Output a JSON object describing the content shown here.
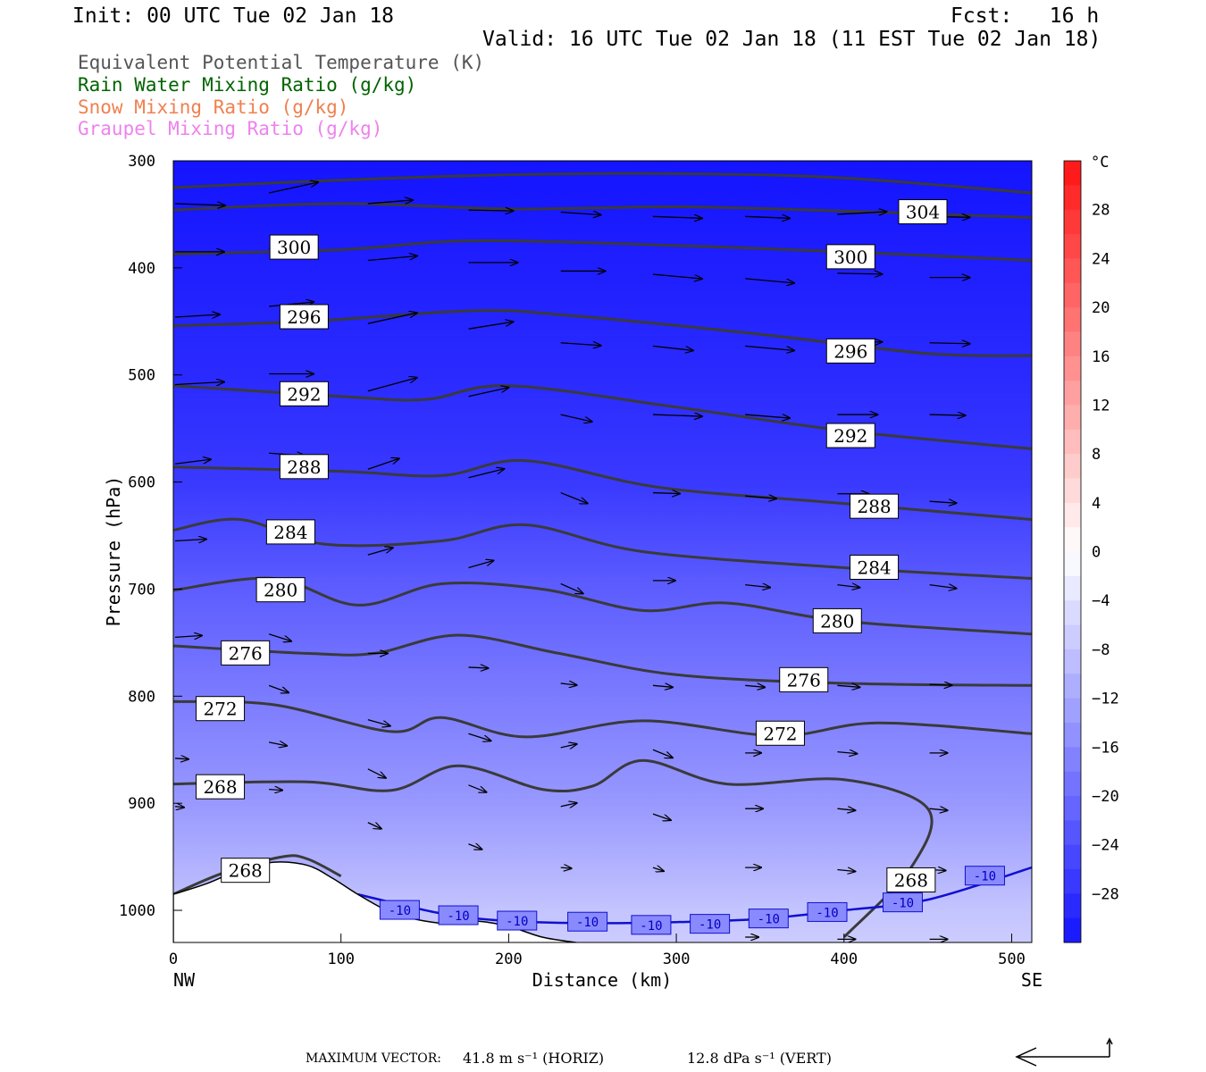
{
  "header": {
    "init": "Init: 00 UTC Tue 02 Jan 18",
    "fcst": "Fcst:   16 h",
    "valid": "Valid: 16 UTC Tue 02 Jan 18 (11 EST Tue 02 Jan 18)"
  },
  "legend": [
    {
      "text": "Equivalent Potential Temperature (K)",
      "color": "#555555"
    },
    {
      "text": "Rain Water Mixing Ratio (g/kg)",
      "color": "#006400"
    },
    {
      "text": "Snow Mixing Ratio (g/kg)",
      "color": "#f08050"
    },
    {
      "text": "Graupel Mixing Ratio (g/kg)",
      "color": "#ee82ee"
    }
  ],
  "footer": {
    "max_vector_label": "MAXIMUM VECTOR:",
    "horiz": "41.8 m s⁻¹ (HORIZ)",
    "vert": "12.8 dPa s⁻¹ (VERT)"
  },
  "chart_data": {
    "type": "cross-section",
    "xlabel": "Distance (km)",
    "ylabel": "Pressure (hPa)",
    "x_range": [
      0,
      512
    ],
    "y_range": [
      300,
      1030
    ],
    "x_ticks": [
      0,
      100,
      200,
      300,
      400,
      500
    ],
    "y_ticks": [
      300,
      400,
      500,
      600,
      700,
      800,
      900,
      1000
    ],
    "x_end_labels": {
      "left": "NW",
      "right": "SE"
    },
    "colorbar": {
      "unit": "°C",
      "labels": [
        28,
        24,
        20,
        16,
        12,
        8,
        4,
        0,
        -4,
        -8,
        -12,
        -16,
        -20,
        -24,
        -28
      ],
      "range": [
        -32,
        32
      ]
    },
    "temperature_background": [
      {
        "p": 300,
        "t": -32
      },
      {
        "p": 500,
        "t": -29
      },
      {
        "p": 600,
        "t": -27
      },
      {
        "p": 700,
        "t": -22
      },
      {
        "p": 800,
        "t": -18
      },
      {
        "p": 900,
        "t": -14
      },
      {
        "p": 1000,
        "t": -8
      },
      {
        "p": 1030,
        "t": -7
      }
    ],
    "theta_e_contours": [
      {
        "value": 304,
        "points": [
          [
            0,
            325
          ],
          [
            100,
            318
          ],
          [
            200,
            313
          ],
          [
            300,
            312
          ],
          [
            400,
            316
          ],
          [
            512,
            330
          ]
        ]
      },
      {
        "value": 304,
        "points": [
          [
            0,
            346
          ],
          [
            100,
            340
          ],
          [
            200,
            345
          ],
          [
            300,
            343
          ],
          [
            400,
            347
          ],
          [
            512,
            353
          ]
        ]
      },
      {
        "value": 300,
        "points": [
          [
            0,
            387
          ],
          [
            100,
            383
          ],
          [
            170,
            375
          ],
          [
            260,
            377
          ],
          [
            400,
            385
          ],
          [
            512,
            393
          ]
        ]
      },
      {
        "value": 296,
        "points": [
          [
            0,
            454
          ],
          [
            80,
            450
          ],
          [
            180,
            440
          ],
          [
            240,
            445
          ],
          [
            350,
            462
          ],
          [
            450,
            480
          ],
          [
            512,
            482
          ]
        ]
      },
      {
        "value": 292,
        "points": [
          [
            0,
            510
          ],
          [
            100,
            520
          ],
          [
            150,
            523
          ],
          [
            200,
            510
          ],
          [
            300,
            530
          ],
          [
            400,
            552
          ],
          [
            512,
            569
          ]
        ]
      },
      {
        "value": 288,
        "points": [
          [
            0,
            586
          ],
          [
            100,
            590
          ],
          [
            160,
            594
          ],
          [
            210,
            580
          ],
          [
            290,
            605
          ],
          [
            400,
            620
          ],
          [
            512,
            635
          ]
        ]
      },
      {
        "value": 284,
        "points": [
          [
            0,
            645
          ],
          [
            40,
            635
          ],
          [
            90,
            658
          ],
          [
            160,
            655
          ],
          [
            210,
            640
          ],
          [
            280,
            665
          ],
          [
            400,
            680
          ],
          [
            512,
            690
          ]
        ]
      },
      {
        "value": 280,
        "points": [
          [
            0,
            701
          ],
          [
            60,
            690
          ],
          [
            110,
            715
          ],
          [
            160,
            695
          ],
          [
            220,
            700
          ],
          [
            280,
            720
          ],
          [
            330,
            713
          ],
          [
            400,
            730
          ],
          [
            512,
            742
          ]
        ]
      },
      {
        "value": 276,
        "points": [
          [
            0,
            753
          ],
          [
            80,
            760
          ],
          [
            120,
            760
          ],
          [
            170,
            743
          ],
          [
            230,
            760
          ],
          [
            300,
            780
          ],
          [
            400,
            788
          ],
          [
            512,
            790
          ]
        ]
      },
      {
        "value": 272,
        "points": [
          [
            0,
            805
          ],
          [
            60,
            808
          ],
          [
            130,
            833
          ],
          [
            160,
            820
          ],
          [
            210,
            838
          ],
          [
            280,
            823
          ],
          [
            360,
            837
          ],
          [
            420,
            825
          ],
          [
            512,
            835
          ]
        ]
      },
      {
        "value": 268,
        "points": [
          [
            0,
            882
          ],
          [
            80,
            880
          ],
          [
            130,
            888
          ],
          [
            170,
            865
          ],
          [
            220,
            887
          ],
          [
            250,
            884
          ],
          [
            280,
            860
          ],
          [
            330,
            882
          ],
          [
            400,
            878
          ],
          [
            450,
            905
          ],
          [
            440,
            960
          ],
          [
            400,
            1025
          ]
        ]
      },
      {
        "value": 268,
        "points": [
          [
            0,
            985
          ],
          [
            30,
            965
          ],
          [
            65,
            950
          ],
          [
            80,
            952
          ],
          [
            100,
            968
          ]
        ]
      }
    ],
    "theta_e_label_points": [
      {
        "value": 304,
        "x": 447,
        "p": 348
      },
      {
        "value": 300,
        "x": 72,
        "p": 381
      },
      {
        "value": 300,
        "x": 404,
        "p": 390
      },
      {
        "value": 296,
        "x": 78,
        "p": 446
      },
      {
        "value": 296,
        "x": 404,
        "p": 478
      },
      {
        "value": 292,
        "x": 78,
        "p": 518
      },
      {
        "value": 292,
        "x": 404,
        "p": 557
      },
      {
        "value": 288,
        "x": 78,
        "p": 586
      },
      {
        "value": 288,
        "x": 418,
        "p": 623
      },
      {
        "value": 284,
        "x": 70,
        "p": 647
      },
      {
        "value": 284,
        "x": 418,
        "p": 680
      },
      {
        "value": 280,
        "x": 64,
        "p": 701
      },
      {
        "value": 280,
        "x": 396,
        "p": 730
      },
      {
        "value": 276,
        "x": 43,
        "p": 760
      },
      {
        "value": 276,
        "x": 376,
        "p": 785
      },
      {
        "value": 272,
        "x": 28,
        "p": 812
      },
      {
        "value": 272,
        "x": 362,
        "p": 835
      },
      {
        "value": 268,
        "x": 28,
        "p": 885
      },
      {
        "value": 268,
        "x": 43,
        "p": 963
      },
      {
        "value": 268,
        "x": 440,
        "p": 972
      }
    ],
    "isotherm_minus10": {
      "value": -10,
      "points": [
        [
          110,
          985
        ],
        [
          160,
          1003
        ],
        [
          200,
          1010
        ],
        [
          250,
          1012
        ],
        [
          300,
          1011
        ],
        [
          350,
          1008
        ],
        [
          400,
          1000
        ],
        [
          450,
          990
        ],
        [
          512,
          960
        ]
      ],
      "label_points": [
        [
          135,
          1000
        ],
        [
          170,
          1005
        ],
        [
          205,
          1010
        ],
        [
          247,
          1011
        ],
        [
          285,
          1014
        ],
        [
          320,
          1013
        ],
        [
          355,
          1008
        ],
        [
          390,
          1002
        ],
        [
          435,
          993
        ],
        [
          484,
          968
        ]
      ]
    },
    "terrain": [
      [
        0,
        985
      ],
      [
        20,
        975
      ],
      [
        40,
        962
      ],
      [
        60,
        955
      ],
      [
        80,
        958
      ],
      [
        95,
        970
      ],
      [
        110,
        985
      ],
      [
        130,
        1002
      ],
      [
        150,
        1010
      ],
      [
        170,
        1013
      ],
      [
        180,
        1010
      ],
      [
        200,
        1015
      ],
      [
        220,
        1025
      ],
      [
        240,
        1030
      ]
    ],
    "wind_vectors": [
      {
        "x": 0,
        "p": 340,
        "dx": 56,
        "dy": 2
      },
      {
        "x": 56,
        "p": 330,
        "dx": 55,
        "dy": -12
      },
      {
        "x": 115,
        "p": 340,
        "dx": 50,
        "dy": -4
      },
      {
        "x": 175,
        "p": 346,
        "dx": 50,
        "dy": 1
      },
      {
        "x": 230,
        "p": 348,
        "dx": 45,
        "dy": 3
      },
      {
        "x": 285,
        "p": 352,
        "dx": 55,
        "dy": 2
      },
      {
        "x": 340,
        "p": 352,
        "dx": 50,
        "dy": 2
      },
      {
        "x": 395,
        "p": 350,
        "dx": 55,
        "dy": -3
      },
      {
        "x": 450,
        "p": 352,
        "dx": 45,
        "dy": 1
      },
      {
        "x": 0,
        "p": 385,
        "dx": 55,
        "dy": 0
      },
      {
        "x": 56,
        "p": 382,
        "dx": 50,
        "dy": -10
      },
      {
        "x": 115,
        "p": 393,
        "dx": 55,
        "dy": -5
      },
      {
        "x": 175,
        "p": 395,
        "dx": 55,
        "dy": 0
      },
      {
        "x": 230,
        "p": 403,
        "dx": 50,
        "dy": 0
      },
      {
        "x": 285,
        "p": 406,
        "dx": 55,
        "dy": 5
      },
      {
        "x": 340,
        "p": 410,
        "dx": 55,
        "dy": 5
      },
      {
        "x": 395,
        "p": 405,
        "dx": 50,
        "dy": 1
      },
      {
        "x": 450,
        "p": 409,
        "dx": 45,
        "dy": 0
      },
      {
        "x": 0,
        "p": 446,
        "dx": 50,
        "dy": -3
      },
      {
        "x": 56,
        "p": 436,
        "dx": 50,
        "dy": -5
      },
      {
        "x": 115,
        "p": 452,
        "dx": 55,
        "dy": -12
      },
      {
        "x": 175,
        "p": 457,
        "dx": 50,
        "dy": -8
      },
      {
        "x": 230,
        "p": 470,
        "dx": 45,
        "dy": 3
      },
      {
        "x": 285,
        "p": 473,
        "dx": 45,
        "dy": 5
      },
      {
        "x": 340,
        "p": 473,
        "dx": 55,
        "dy": 5
      },
      {
        "x": 395,
        "p": 470,
        "dx": 50,
        "dy": -1
      },
      {
        "x": 450,
        "p": 470,
        "dx": 45,
        "dy": 1
      },
      {
        "x": 0,
        "p": 509,
        "dx": 55,
        "dy": -3
      },
      {
        "x": 56,
        "p": 499,
        "dx": 50,
        "dy": 0
      },
      {
        "x": 115,
        "p": 515,
        "dx": 55,
        "dy": -15
      },
      {
        "x": 175,
        "p": 520,
        "dx": 45,
        "dy": -10
      },
      {
        "x": 230,
        "p": 537,
        "dx": 35,
        "dy": 8
      },
      {
        "x": 285,
        "p": 537,
        "dx": 55,
        "dy": 2
      },
      {
        "x": 340,
        "p": 537,
        "dx": 50,
        "dy": 4
      },
      {
        "x": 395,
        "p": 537,
        "dx": 45,
        "dy": 0
      },
      {
        "x": 450,
        "p": 537,
        "dx": 40,
        "dy": 1
      },
      {
        "x": 0,
        "p": 583,
        "dx": 40,
        "dy": -5
      },
      {
        "x": 56,
        "p": 573,
        "dx": 40,
        "dy": 3
      },
      {
        "x": 115,
        "p": 588,
        "dx": 35,
        "dy": -12
      },
      {
        "x": 175,
        "p": 596,
        "dx": 40,
        "dy": -10
      },
      {
        "x": 230,
        "p": 610,
        "dx": 30,
        "dy": 12
      },
      {
        "x": 285,
        "p": 610,
        "dx": 30,
        "dy": 1
      },
      {
        "x": 340,
        "p": 613,
        "dx": 35,
        "dy": 3
      },
      {
        "x": 395,
        "p": 611,
        "dx": 35,
        "dy": 0
      },
      {
        "x": 450,
        "p": 618,
        "dx": 30,
        "dy": 2
      },
      {
        "x": 0,
        "p": 655,
        "dx": 35,
        "dy": -2
      },
      {
        "x": 56,
        "p": 648,
        "dx": 30,
        "dy": 9
      },
      {
        "x": 115,
        "p": 668,
        "dx": 28,
        "dy": -8
      },
      {
        "x": 175,
        "p": 680,
        "dx": 28,
        "dy": -8
      },
      {
        "x": 230,
        "p": 695,
        "dx": 25,
        "dy": 11
      },
      {
        "x": 285,
        "p": 692,
        "dx": 25,
        "dy": 0
      },
      {
        "x": 340,
        "p": 696,
        "dx": 28,
        "dy": 3
      },
      {
        "x": 395,
        "p": 696,
        "dx": 25,
        "dy": 3
      },
      {
        "x": 450,
        "p": 696,
        "dx": 30,
        "dy": 4
      },
      {
        "x": 0,
        "p": 745,
        "dx": 30,
        "dy": -2
      },
      {
        "x": 56,
        "p": 742,
        "dx": 25,
        "dy": 8
      },
      {
        "x": 115,
        "p": 760,
        "dx": 22,
        "dy": 0
      },
      {
        "x": 175,
        "p": 773,
        "dx": 22,
        "dy": 1
      },
      {
        "x": 230,
        "p": 788,
        "dx": 18,
        "dy": 2
      },
      {
        "x": 285,
        "p": 790,
        "dx": 22,
        "dy": 2
      },
      {
        "x": 340,
        "p": 790,
        "dx": 22,
        "dy": 2
      },
      {
        "x": 395,
        "p": 790,
        "dx": 25,
        "dy": 2
      },
      {
        "x": 450,
        "p": 789,
        "dx": 25,
        "dy": 1
      },
      {
        "x": 0,
        "p": 858,
        "dx": 15,
        "dy": 1
      },
      {
        "x": 56,
        "p": 790,
        "dx": 22,
        "dy": 8
      },
      {
        "x": 115,
        "p": 822,
        "dx": 25,
        "dy": 7
      },
      {
        "x": 175,
        "p": 835,
        "dx": 25,
        "dy": 8
      },
      {
        "x": 230,
        "p": 848,
        "dx": 18,
        "dy": -4
      },
      {
        "x": 285,
        "p": 850,
        "dx": 22,
        "dy": 9
      },
      {
        "x": 340,
        "p": 853,
        "dx": 18,
        "dy": 0
      },
      {
        "x": 395,
        "p": 852,
        "dx": 22,
        "dy": 2
      },
      {
        "x": 450,
        "p": 853,
        "dx": 20,
        "dy": 0
      },
      {
        "x": 0,
        "p": 903,
        "dx": 10,
        "dy": 1
      },
      {
        "x": 56,
        "p": 843,
        "dx": 20,
        "dy": 4
      },
      {
        "x": 115,
        "p": 868,
        "dx": 20,
        "dy": 10
      },
      {
        "x": 175,
        "p": 883,
        "dx": 20,
        "dy": 8
      },
      {
        "x": 230,
        "p": 903,
        "dx": 18,
        "dy": -4
      },
      {
        "x": 285,
        "p": 910,
        "dx": 20,
        "dy": 7
      },
      {
        "x": 340,
        "p": 905,
        "dx": 20,
        "dy": 0
      },
      {
        "x": 395,
        "p": 905,
        "dx": 20,
        "dy": 2
      },
      {
        "x": 450,
        "p": 905,
        "dx": 20,
        "dy": 2
      },
      {
        "x": 56,
        "p": 887,
        "dx": 15,
        "dy": 1
      },
      {
        "x": 115,
        "p": 918,
        "dx": 15,
        "dy": 7
      },
      {
        "x": 175,
        "p": 938,
        "dx": 15,
        "dy": 6
      },
      {
        "x": 230,
        "p": 960,
        "dx": 12,
        "dy": 1
      },
      {
        "x": 285,
        "p": 960,
        "dx": 12,
        "dy": 4
      },
      {
        "x": 340,
        "p": 960,
        "dx": 18,
        "dy": 0
      },
      {
        "x": 395,
        "p": 962,
        "dx": 20,
        "dy": 2
      },
      {
        "x": 450,
        "p": 962,
        "dx": 18,
        "dy": 1
      },
      {
        "x": 340,
        "p": 1025,
        "dx": 15,
        "dy": 0
      },
      {
        "x": 395,
        "p": 1027,
        "dx": 20,
        "dy": 0
      },
      {
        "x": 450,
        "p": 1027,
        "dx": 20,
        "dy": 0
      }
    ]
  }
}
